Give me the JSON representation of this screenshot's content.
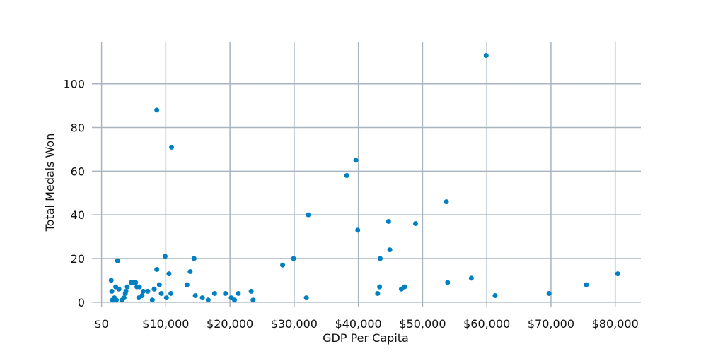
{
  "chart_data": {
    "type": "scatter",
    "xlabel": "GDP Per Capita",
    "ylabel": "Total Medals Won",
    "xlim": [
      -1500,
      84000
    ],
    "ylim": [
      -2,
      119
    ],
    "x_ticks": [
      0,
      10000,
      20000,
      30000,
      40000,
      50000,
      60000,
      70000,
      80000
    ],
    "x_tick_labels": [
      "$0",
      "$10,000",
      "$20,000",
      "$30,000",
      "$40,000",
      "$50,000",
      "$60,000",
      "$70,000",
      "$80,000"
    ],
    "y_ticks": [
      0,
      20,
      40,
      60,
      80,
      100
    ],
    "y_tick_labels": [
      "0",
      "20",
      "40",
      "60",
      "80",
      "100"
    ],
    "grid": true,
    "marker_color": "#0080c0",
    "points": [
      [
        1500,
        10
      ],
      [
        1600,
        5
      ],
      [
        1700,
        1
      ],
      [
        1800,
        1
      ],
      [
        2000,
        2
      ],
      [
        2200,
        7
      ],
      [
        2300,
        1
      ],
      [
        2500,
        19
      ],
      [
        2700,
        6
      ],
      [
        3200,
        1
      ],
      [
        3500,
        2
      ],
      [
        3700,
        4
      ],
      [
        3800,
        5
      ],
      [
        4000,
        7
      ],
      [
        4600,
        9
      ],
      [
        5000,
        9
      ],
      [
        5300,
        9
      ],
      [
        5500,
        7
      ],
      [
        5800,
        2
      ],
      [
        5900,
        7
      ],
      [
        6300,
        3
      ],
      [
        6500,
        5
      ],
      [
        7200,
        5
      ],
      [
        7900,
        1
      ],
      [
        8200,
        6
      ],
      [
        8600,
        15
      ],
      [
        8600,
        88
      ],
      [
        9000,
        8
      ],
      [
        9300,
        4
      ],
      [
        9900,
        21
      ],
      [
        10100,
        2
      ],
      [
        10500,
        13
      ],
      [
        10800,
        4
      ],
      [
        10900,
        71
      ],
      [
        13300,
        8
      ],
      [
        13800,
        14
      ],
      [
        14400,
        20
      ],
      [
        14600,
        3
      ],
      [
        15700,
        2
      ],
      [
        16600,
        1
      ],
      [
        17600,
        4
      ],
      [
        19300,
        4
      ],
      [
        20200,
        2
      ],
      [
        20700,
        1
      ],
      [
        21300,
        4
      ],
      [
        23300,
        5
      ],
      [
        23600,
        1
      ],
      [
        28200,
        17
      ],
      [
        29900,
        20
      ],
      [
        31900,
        2
      ],
      [
        32200,
        40
      ],
      [
        38200,
        58
      ],
      [
        39600,
        65
      ],
      [
        39900,
        33
      ],
      [
        43000,
        4
      ],
      [
        43300,
        7
      ],
      [
        43400,
        20
      ],
      [
        44700,
        37
      ],
      [
        44900,
        24
      ],
      [
        46700,
        6
      ],
      [
        47200,
        7
      ],
      [
        48900,
        36
      ],
      [
        53700,
        46
      ],
      [
        53900,
        9
      ],
      [
        57600,
        11
      ],
      [
        59900,
        113
      ],
      [
        61300,
        3
      ],
      [
        69700,
        4
      ],
      [
        75500,
        8
      ],
      [
        80400,
        13
      ]
    ]
  }
}
